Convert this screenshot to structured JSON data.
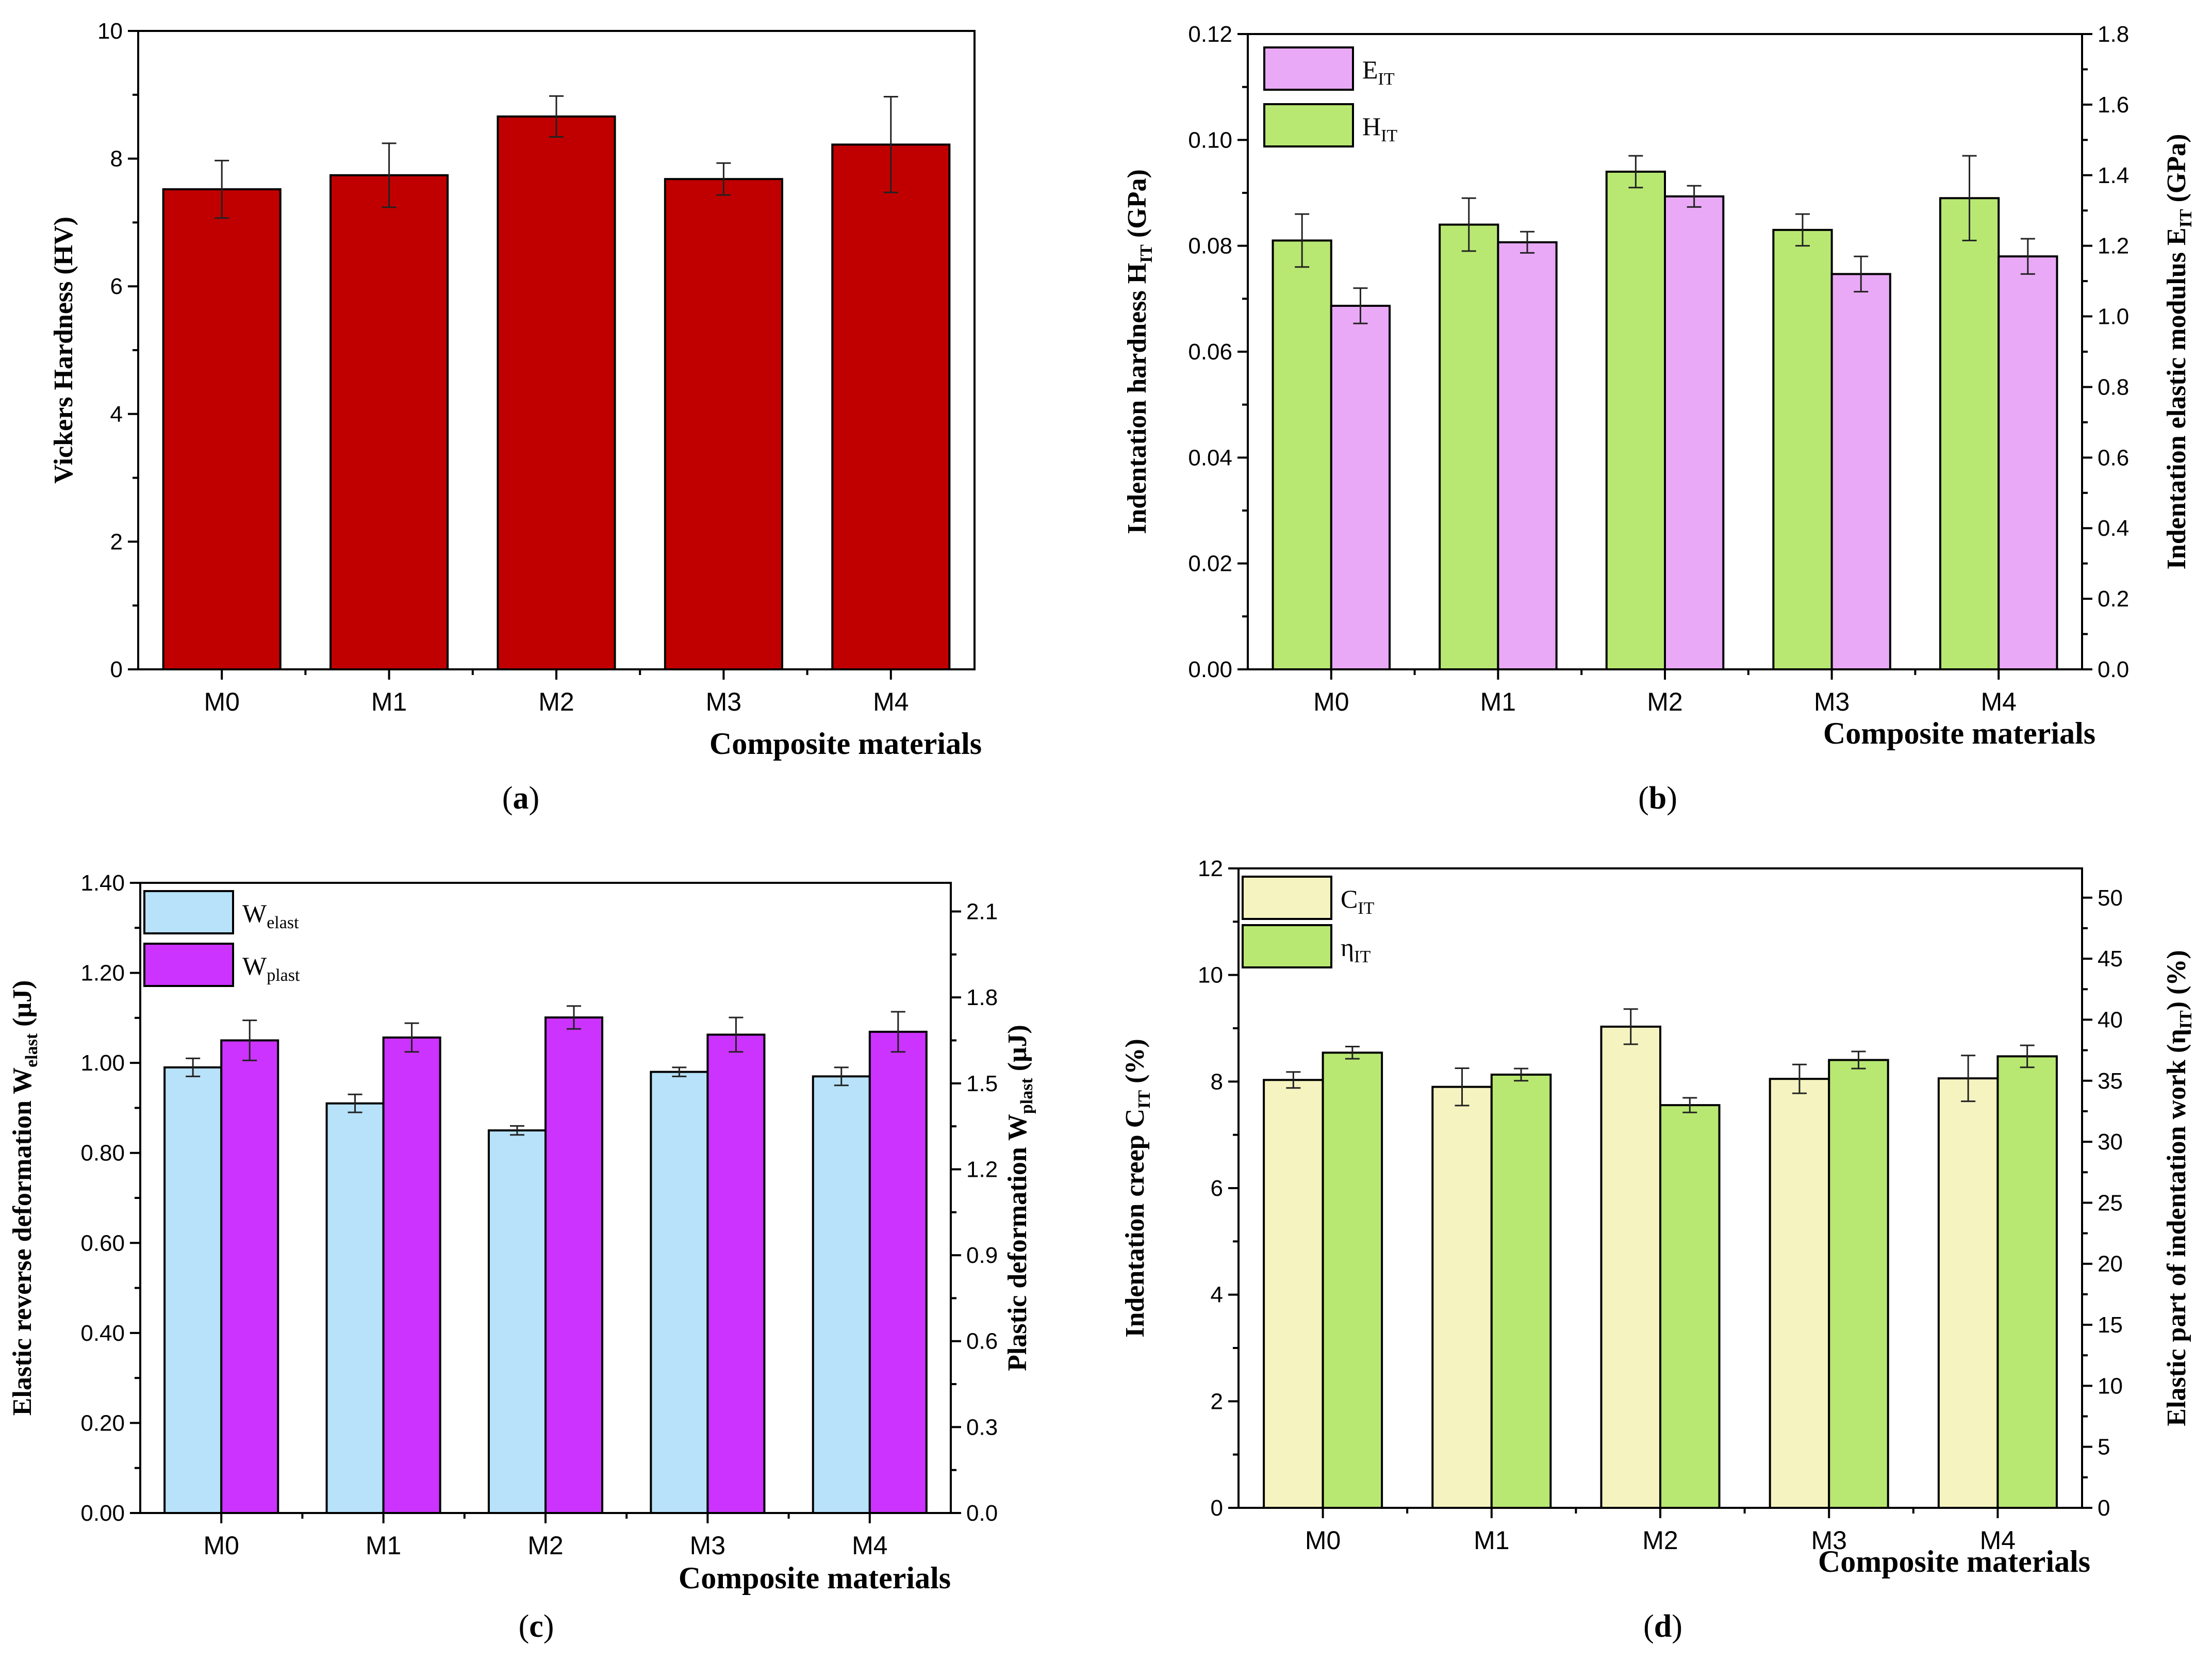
{
  "colors": {
    "dark_red": "#c00000",
    "pink": "#e9a9f6",
    "green": "#b8e872",
    "light_blue": "#b7e2f9",
    "purple": "#cc33ff",
    "cream": "#f5f3bf"
  },
  "chart_data": [
    {
      "id": "a",
      "panel_label": "a",
      "type": "bar",
      "categories": [
        "M0",
        "M1",
        "M2",
        "M3",
        "M4"
      ],
      "xlabel": "Composite materials",
      "ylabel": "Vickers Hardness (HV)",
      "ylim": [
        0,
        10
      ],
      "yticks": [
        "0",
        "2",
        "4",
        "6",
        "8",
        "10"
      ],
      "series": [
        {
          "name": "Vickers Hardness",
          "axis": "left",
          "color": "#c00000",
          "values": [
            7.52,
            7.74,
            8.66,
            7.68,
            8.22
          ],
          "errors": [
            0.45,
            0.5,
            0.32,
            0.25,
            0.75
          ]
        }
      ]
    },
    {
      "id": "b",
      "panel_label": "b",
      "type": "bar",
      "categories": [
        "M0",
        "M1",
        "M2",
        "M3",
        "M4"
      ],
      "xlabel": "Composite materials",
      "ylabel": {
        "main": "Indentation hardness H",
        "sub": "IT",
        "tail": " (GPa)"
      },
      "ylabel_right": {
        "main": "Indentation elastic modulus E",
        "sub": "IT",
        "tail": " (GPa)"
      },
      "ylim": [
        0,
        0.12
      ],
      "ylim_right": [
        0,
        1.8
      ],
      "yticks": [
        "0.00",
        "0.02",
        "0.04",
        "0.06",
        "0.08",
        "0.10",
        "0.12"
      ],
      "yticks_right": [
        "0.0",
        "0.2",
        "0.4",
        "0.6",
        "0.8",
        "1.0",
        "1.2",
        "1.4",
        "1.6",
        "1.8"
      ],
      "legend": [
        {
          "main": "E",
          "sub": "IT",
          "color": "#e9a9f6"
        },
        {
          "main": "H",
          "sub": "IT",
          "color": "#b8e872"
        }
      ],
      "series": [
        {
          "name": "HIT",
          "axis": "left",
          "color": "#b8e872",
          "values": [
            0.081,
            0.084,
            0.094,
            0.083,
            0.089
          ],
          "errors": [
            0.005,
            0.005,
            0.003,
            0.003,
            0.008
          ]
        },
        {
          "name": "EIT",
          "axis": "right",
          "color": "#e9a9f6",
          "values": [
            1.03,
            1.21,
            1.34,
            1.12,
            1.17
          ],
          "errors": [
            0.05,
            0.03,
            0.03,
            0.05,
            0.05
          ]
        }
      ]
    },
    {
      "id": "c",
      "panel_label": "c",
      "type": "bar",
      "categories": [
        "M0",
        "M1",
        "M2",
        "M3",
        "M4"
      ],
      "xlabel": "Composite materials",
      "ylabel": {
        "main": "Elastic reverse deformation W",
        "sub": "elast",
        "tail": " (μJ)"
      },
      "ylabel_right": {
        "main": "Plastic deformation W",
        "sub": "plast",
        "tail": " (μJ)"
      },
      "ylim": [
        0,
        1.4
      ],
      "ylim_right": [
        0,
        2.2
      ],
      "yticks": [
        "0.00",
        "0.20",
        "0.40",
        "0.60",
        "0.80",
        "1.00",
        "1.20",
        "1.40"
      ],
      "yticks_right": [
        "0.0",
        "0.3",
        "0.6",
        "0.9",
        "1.2",
        "1.5",
        "1.8",
        "2.1"
      ],
      "legend": [
        {
          "main": "W",
          "sub": "elast",
          "color": "#b7e2f9"
        },
        {
          "main": "W",
          "sub": "plast",
          "color": "#cc33ff"
        }
      ],
      "series": [
        {
          "name": "Welast",
          "axis": "left",
          "color": "#b7e2f9",
          "values": [
            0.99,
            0.91,
            0.85,
            0.98,
            0.97
          ],
          "errors": [
            0.02,
            0.02,
            0.01,
            0.01,
            0.02
          ]
        },
        {
          "name": "Wplast",
          "axis": "right",
          "color": "#cc33ff",
          "values": [
            1.65,
            1.66,
            1.73,
            1.67,
            1.68
          ],
          "errors": [
            0.07,
            0.05,
            0.04,
            0.06,
            0.07
          ]
        }
      ]
    },
    {
      "id": "d",
      "panel_label": "d",
      "type": "bar",
      "categories": [
        "M0",
        "M1",
        "M2",
        "M3",
        "M4"
      ],
      "xlabel": "Composite materials",
      "ylabel": {
        "main": "Indentation creep C",
        "sub": "IT",
        "tail": " (%)"
      },
      "ylabel_right": {
        "main": "Elastic part of indentation work (η",
        "sub": "IT",
        "tail": ") (%)"
      },
      "ylim": [
        0,
        12
      ],
      "ylim_right": [
        0,
        52.4
      ],
      "yticks": [
        "0",
        "2",
        "4",
        "6",
        "8",
        "10",
        "12"
      ],
      "yticks_right": [
        "0",
        "5",
        "10",
        "15",
        "20",
        "25",
        "30",
        "35",
        "40",
        "45",
        "50"
      ],
      "legend": [
        {
          "main": "C",
          "sub": "IT",
          "color": "#f5f3bf"
        },
        {
          "main": "η",
          "sub": "IT",
          "color": "#b8e872"
        }
      ],
      "series": [
        {
          "name": "CIT",
          "axis": "left",
          "color": "#f5f3bf",
          "values": [
            8.03,
            7.9,
            9.03,
            8.05,
            8.06
          ],
          "errors": [
            0.15,
            0.35,
            0.33,
            0.27,
            0.43
          ]
        },
        {
          "name": "ηIT",
          "axis": "right",
          "color": "#b8e872",
          "values": [
            37.3,
            35.5,
            33.0,
            36.7,
            37.0
          ],
          "errors": [
            0.5,
            0.5,
            0.6,
            0.7,
            0.9
          ]
        }
      ]
    }
  ]
}
